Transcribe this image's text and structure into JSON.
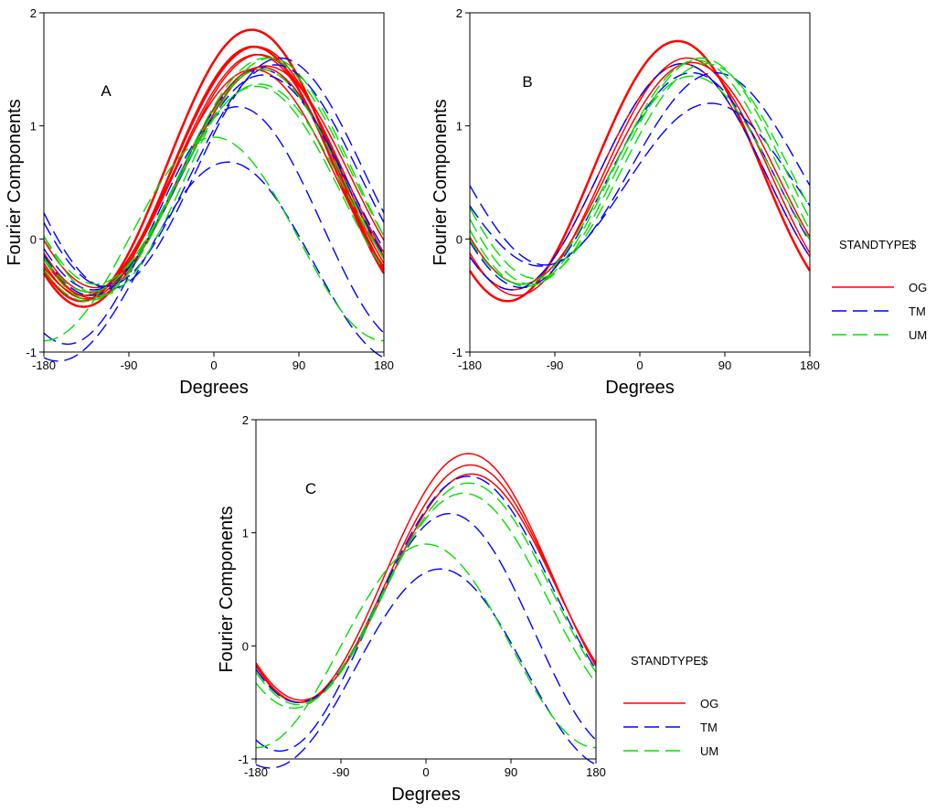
{
  "figure": {
    "legend_title": "STANDTYPE$",
    "series_colors": {
      "OG": "#ff0000",
      "TM": "#0000ff",
      "UM": "#00e000"
    }
  },
  "chart_data": [
    {
      "type": "line",
      "panel_label": "A",
      "xlabel": "Degrees",
      "ylabel": "Fourier Components",
      "xlim": [
        -180,
        180
      ],
      "ylim": [
        -1,
        2
      ],
      "xticks": [
        -180,
        -90,
        0,
        90,
        180
      ],
      "yticks": [
        -1,
        0,
        1,
        2
      ],
      "grid": false,
      "legend": null,
      "series": [
        {
          "name": "OG",
          "style": "solid",
          "width": 2.5,
          "amp": 1.2,
          "phase": 40,
          "offset": 0.65
        },
        {
          "name": "OG",
          "style": "solid",
          "width": 2.5,
          "amp": 1.15,
          "phase": 42,
          "offset": 0.55
        },
        {
          "name": "OG",
          "style": "solid",
          "width": 1.5,
          "amp": 1.08,
          "phase": 45,
          "offset": 0.55
        },
        {
          "name": "OG",
          "style": "solid",
          "width": 1.5,
          "amp": 1.05,
          "phase": 48,
          "offset": 0.58
        },
        {
          "name": "OG",
          "style": "solid",
          "width": 1.5,
          "amp": 1.02,
          "phase": 50,
          "offset": 0.5
        },
        {
          "name": "OG",
          "style": "solid",
          "width": 1.5,
          "amp": 1.1,
          "phase": 45,
          "offset": 0.6
        },
        {
          "name": "OG",
          "style": "solid",
          "width": 1.5,
          "amp": 0.98,
          "phase": 55,
          "offset": 0.55
        },
        {
          "name": "OG",
          "style": "solid",
          "width": 1.5,
          "amp": 1.0,
          "phase": 42,
          "offset": 0.5
        },
        {
          "name": "TM",
          "style": "dashed",
          "amp": 0.88,
          "phase": 15,
          "offset": -0.2
        },
        {
          "name": "TM",
          "style": "dashed",
          "amp": 1.05,
          "phase": 25,
          "offset": 0.12
        },
        {
          "name": "TM",
          "style": "dashed",
          "amp": 1.0,
          "phase": 50,
          "offset": 0.5
        },
        {
          "name": "TM",
          "style": "dashed",
          "amp": 1.02,
          "phase": 70,
          "offset": 0.58
        },
        {
          "name": "TM",
          "style": "dashed",
          "amp": 0.98,
          "phase": 65,
          "offset": 0.56
        },
        {
          "name": "TM",
          "style": "dashed",
          "amp": 0.95,
          "phase": 52,
          "offset": 0.5
        },
        {
          "name": "UM",
          "style": "dashed",
          "amp": 0.95,
          "phase": 45,
          "offset": 0.4
        },
        {
          "name": "UM",
          "style": "dashed",
          "amp": 1.02,
          "phase": 50,
          "offset": 0.48
        },
        {
          "name": "UM",
          "style": "dashed",
          "amp": 1.05,
          "phase": 60,
          "offset": 0.55
        },
        {
          "name": "UM",
          "style": "dashed",
          "amp": 0.9,
          "phase": 0,
          "offset": 0.0
        },
        {
          "name": "UM",
          "style": "dashed",
          "amp": 1.0,
          "phase": 55,
          "offset": 0.6
        },
        {
          "name": "UM",
          "style": "dashed",
          "amp": 0.92,
          "phase": 48,
          "offset": 0.45
        }
      ]
    },
    {
      "type": "line",
      "panel_label": "B",
      "xlabel": "Degrees",
      "ylabel": "Fourier Components",
      "xlim": [
        -180,
        180
      ],
      "ylim": [
        -1,
        2
      ],
      "xticks": [
        -180,
        -90,
        0,
        90,
        180
      ],
      "yticks": [
        -1,
        0,
        1,
        2
      ],
      "grid": false,
      "legend": "right",
      "legend_entries": [
        "OG",
        "TM",
        "UM"
      ],
      "series": [
        {
          "name": "OG",
          "style": "solid",
          "width": 2.5,
          "amp": 1.15,
          "phase": 40,
          "offset": 0.6
        },
        {
          "name": "OG",
          "style": "solid",
          "width": 1.5,
          "amp": 1.05,
          "phase": 50,
          "offset": 0.55
        },
        {
          "name": "OG",
          "style": "solid",
          "width": 1.5,
          "amp": 1.0,
          "phase": 45,
          "offset": 0.55
        },
        {
          "name": "OG",
          "style": "solid",
          "width": 1.5,
          "amp": 0.98,
          "phase": 55,
          "offset": 0.58
        },
        {
          "name": "TM",
          "style": "dashed",
          "amp": 0.72,
          "phase": 75,
          "offset": 0.48
        },
        {
          "name": "TM",
          "style": "dashed",
          "amp": 0.85,
          "phase": 80,
          "offset": 0.62
        },
        {
          "name": "TM",
          "style": "dashed",
          "amp": 0.95,
          "phase": 55,
          "offset": 0.52
        },
        {
          "name": "TM",
          "style": "dashed",
          "amp": 1.0,
          "phase": 45,
          "offset": 0.55
        },
        {
          "name": "UM",
          "style": "dashed",
          "amp": 1.0,
          "phase": 60,
          "offset": 0.58
        },
        {
          "name": "UM",
          "style": "dashed",
          "amp": 0.95,
          "phase": 70,
          "offset": 0.6
        },
        {
          "name": "UM",
          "style": "dashed",
          "amp": 1.0,
          "phase": 65,
          "offset": 0.6
        },
        {
          "name": "UM",
          "style": "dashed",
          "amp": 0.92,
          "phase": 55,
          "offset": 0.52
        }
      ]
    },
    {
      "type": "line",
      "panel_label": "C",
      "xlabel": "Degrees",
      "ylabel": "Fourier Components",
      "xlim": [
        -180,
        180
      ],
      "ylim": [
        -1,
        2
      ],
      "xticks": [
        -180,
        -90,
        0,
        90,
        180
      ],
      "yticks": [
        -1,
        0,
        1,
        2
      ],
      "grid": false,
      "legend": "right",
      "legend_entries": [
        "OG",
        "TM",
        "UM"
      ],
      "series": [
        {
          "name": "OG",
          "style": "solid",
          "width": 1.5,
          "amp": 1.1,
          "phase": 45,
          "offset": 0.6
        },
        {
          "name": "OG",
          "style": "solid",
          "width": 1.5,
          "amp": 1.05,
          "phase": 47,
          "offset": 0.55
        },
        {
          "name": "OG",
          "style": "solid",
          "width": 1.5,
          "amp": 1.0,
          "phase": 48,
          "offset": 0.52
        },
        {
          "name": "TM",
          "style": "dashed",
          "amp": 0.88,
          "phase": 15,
          "offset": -0.2
        },
        {
          "name": "TM",
          "style": "dashed",
          "amp": 1.05,
          "phase": 25,
          "offset": 0.12
        },
        {
          "name": "TM",
          "style": "dashed",
          "amp": 1.0,
          "phase": 45,
          "offset": 0.5
        },
        {
          "name": "UM",
          "style": "dashed",
          "amp": 0.9,
          "phase": 0,
          "offset": 0.0
        },
        {
          "name": "UM",
          "style": "dashed",
          "amp": 0.98,
          "phase": 45,
          "offset": 0.46
        },
        {
          "name": "UM",
          "style": "dashed",
          "amp": 0.95,
          "phase": 40,
          "offset": 0.4
        }
      ]
    }
  ]
}
